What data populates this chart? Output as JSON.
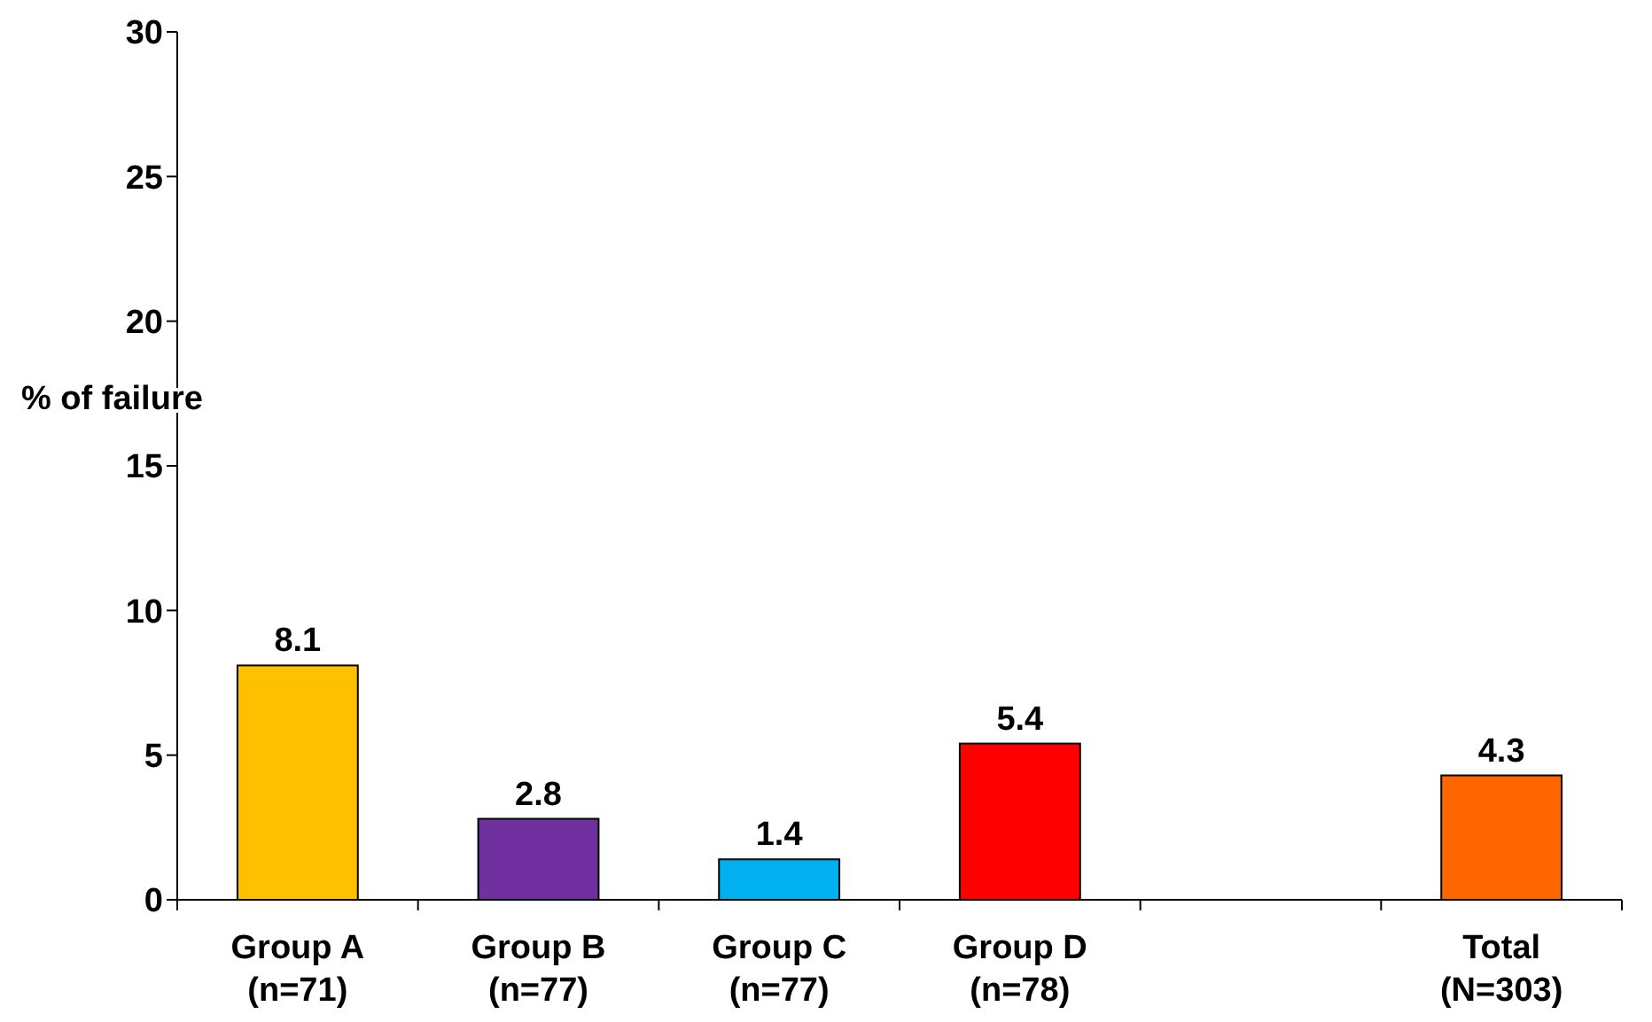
{
  "chart_data": {
    "type": "bar",
    "ylabel": "% of failure",
    "categories": [
      "Group A\n(n=71)",
      "Group B\n(n=77)",
      "Group C\n(n=77)",
      "Group D\n(n=78)",
      null,
      "Total\n(N=303)"
    ],
    "values": [
      8.1,
      2.8,
      1.4,
      5.4,
      null,
      4.3
    ],
    "colors": [
      "#ffc000",
      "#7030a0",
      "#00b0f0",
      "#ff0000",
      null,
      "#ff6600"
    ],
    "ylim": [
      0,
      30
    ],
    "yticks": [
      0,
      5,
      10,
      15,
      20,
      25,
      30
    ],
    "data_labels": true,
    "grid": false
  }
}
